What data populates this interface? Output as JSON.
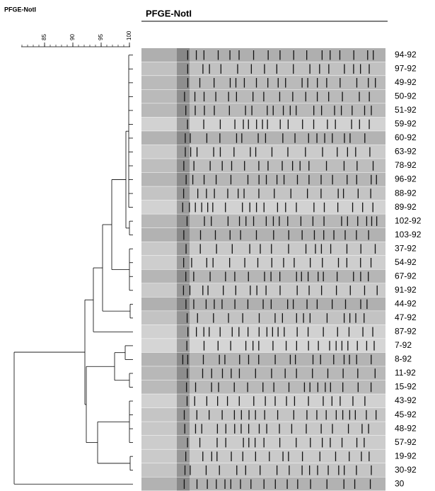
{
  "header": {
    "left_title": "PFGE-NotI",
    "right_title": "PFGE-NotI"
  },
  "scale": {
    "ticks": [
      85,
      90,
      95,
      100
    ]
  },
  "lanes": [
    "94-92",
    "97-92",
    "49-92",
    "50-92",
    "51-92",
    "59-92",
    "60-92",
    "63-92",
    "78-92",
    "96-92",
    "88-92",
    "89-92",
    "102-92",
    "103-92",
    "37-92",
    "54-92",
    "67-92",
    "91-92",
    "44-92",
    "47-92",
    "87-92",
    "7-92",
    "8-92",
    "11-92",
    "15-92",
    "43-92",
    "45-92",
    "48-92",
    "57-92",
    "19-92",
    "30-92",
    "30"
  ]
}
